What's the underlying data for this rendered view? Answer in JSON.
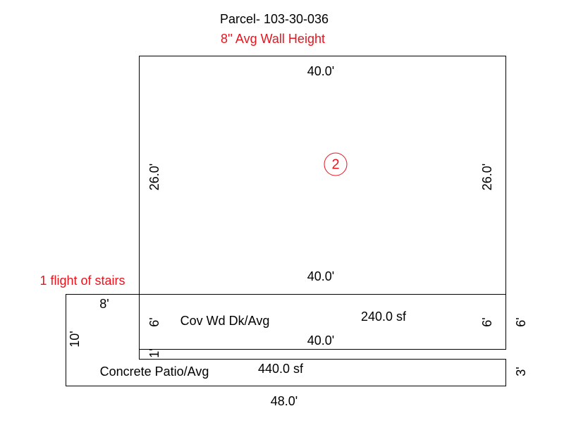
{
  "header": {
    "title": "Parcel- 103-30-036",
    "subtitle": "8'' Avg Wall Height"
  },
  "main_area": {
    "label": "2",
    "top": "40.0'",
    "bottom": "40.0'",
    "left": "26.0'",
    "right": "26.0'"
  },
  "deck": {
    "name": "Cov Wd Dk/Avg",
    "area": "240.0 sf",
    "left": "6'",
    "right": "6'",
    "bottom": "40.0'",
    "outer_right": "6'"
  },
  "stairs": {
    "note": "1 flight of stairs",
    "top": "8'",
    "side": "10'",
    "step": "1'"
  },
  "patio": {
    "name": "Concrete Patio/Avg",
    "area": "440.0 sf",
    "right": "3'",
    "bottom": "48.0'"
  }
}
